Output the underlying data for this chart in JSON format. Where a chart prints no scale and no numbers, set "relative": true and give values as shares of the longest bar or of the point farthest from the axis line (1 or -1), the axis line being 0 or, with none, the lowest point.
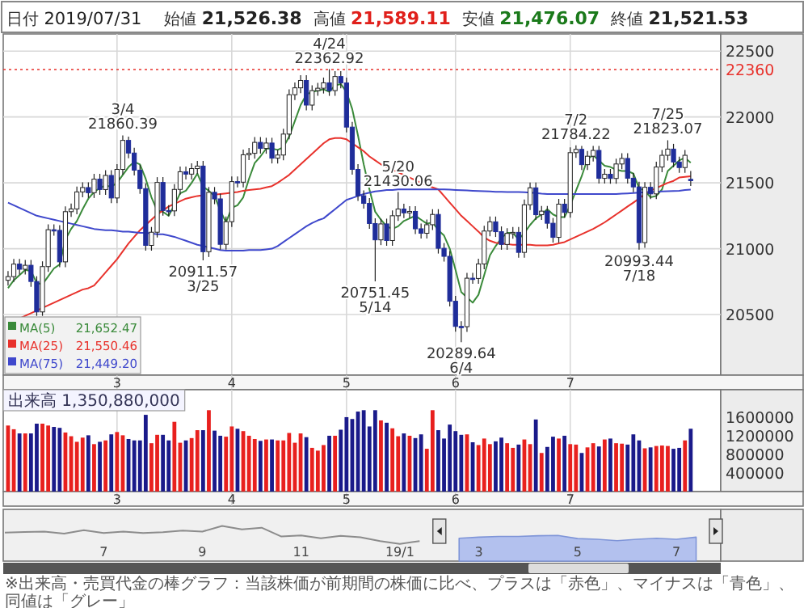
{
  "chart_data": [
    {
      "type": "candlestick",
      "categories": [
        null,
        null,
        null,
        null,
        null,
        null,
        null,
        null,
        null,
        null,
        null,
        null,
        null,
        null,
        null,
        null,
        null,
        null,
        null,
        "3",
        null,
        null,
        null,
        null,
        null,
        null,
        null,
        null,
        null,
        null,
        null,
        null,
        null,
        null,
        null,
        null,
        null,
        null,
        null,
        "4",
        null,
        null,
        null,
        null,
        null,
        null,
        null,
        null,
        null,
        null,
        null,
        null,
        null,
        null,
        null,
        null,
        null,
        null,
        null,
        "5",
        null,
        null,
        null,
        null,
        null,
        null,
        null,
        null,
        null,
        null,
        null,
        null,
        null,
        null,
        null,
        null,
        null,
        null,
        "6",
        null,
        null,
        null,
        null,
        null,
        null,
        null,
        null,
        null,
        null,
        null,
        null,
        null,
        null,
        null,
        null,
        null,
        null,
        null,
        "7",
        null,
        null,
        null,
        null,
        null,
        null,
        null,
        null,
        null,
        null,
        null,
        null,
        null,
        null,
        null,
        null,
        null,
        null,
        null,
        null,
        null
      ],
      "ohlc": [
        [
          20760,
          20830,
          20720,
          20788
        ],
        [
          20788,
          20923,
          20748,
          20883
        ],
        [
          20883,
          20923,
          20804,
          20844
        ],
        [
          20844,
          20914,
          20804,
          20874
        ],
        [
          20874,
          20914,
          20711,
          20751
        ],
        [
          20751,
          20791,
          20490,
          20520
        ],
        [
          20520,
          20904,
          20490,
          20864
        ],
        [
          20864,
          21184,
          20824,
          21144
        ],
        [
          21144,
          21184,
          21099,
          21139
        ],
        [
          21139,
          21179,
          20860,
          20900
        ],
        [
          20900,
          21321,
          20860,
          21281
        ],
        [
          21281,
          21342,
          21241,
          21302
        ],
        [
          21302,
          21471,
          21262,
          21431
        ],
        [
          21431,
          21504,
          21391,
          21464
        ],
        [
          21464,
          21504,
          21385,
          21425
        ],
        [
          21425,
          21568,
          21385,
          21528
        ],
        [
          21528,
          21568,
          21409,
          21449
        ],
        [
          21449,
          21596,
          21409,
          21556
        ],
        [
          21556,
          21596,
          21345,
          21385
        ],
        [
          21385,
          21642,
          21345,
          21602
        ],
        [
          21602,
          21860.39,
          21562,
          21822
        ],
        [
          21822,
          21850,
          21686,
          21726
        ],
        [
          21726,
          21766,
          21556,
          21596
        ],
        [
          21596,
          21636,
          21416,
          21456
        ],
        [
          21456,
          21496,
          20985,
          21025
        ],
        [
          21025,
          21165,
          20985,
          21125
        ],
        [
          21125,
          21543,
          21085,
          21503
        ],
        [
          21503,
          21543,
          21250,
          21290
        ],
        [
          21290,
          21330,
          21247,
          21287
        ],
        [
          21287,
          21490,
          21247,
          21450
        ],
        [
          21450,
          21624,
          21410,
          21584
        ],
        [
          21584,
          21624,
          21526,
          21566
        ],
        [
          21566,
          21648,
          21526,
          21608
        ],
        [
          21608,
          21667,
          21568,
          21627
        ],
        [
          21627,
          21667,
          20911.57,
          20977
        ],
        [
          20977,
          21468,
          20937,
          21428
        ],
        [
          21428,
          21468,
          21338,
          21378
        ],
        [
          21378,
          21418,
          20993,
          21033
        ],
        [
          21033,
          21245,
          20993,
          21205
        ],
        [
          21205,
          21549,
          21165,
          21509
        ],
        [
          21509,
          21549,
          21465,
          21505
        ],
        [
          21505,
          21753,
          21465,
          21713
        ],
        [
          21713,
          21764,
          21673,
          21724
        ],
        [
          21724,
          21847,
          21684,
          21807
        ],
        [
          21807,
          21847,
          21721,
          21761
        ],
        [
          21761,
          21842,
          21721,
          21802
        ],
        [
          21802,
          21842,
          21647,
          21687
        ],
        [
          21687,
          21751,
          21647,
          21711
        ],
        [
          21711,
          21910,
          21671,
          21870
        ],
        [
          21870,
          22209,
          21830,
          22169
        ],
        [
          22169,
          22261,
          22129,
          22221
        ],
        [
          22221,
          22317,
          22181,
          22277
        ],
        [
          22277,
          22317,
          22050,
          22090
        ],
        [
          22090,
          22240,
          22050,
          22200
        ],
        [
          22200,
          22258,
          22160,
          22218
        ],
        [
          22218,
          22299,
          22178,
          22259
        ],
        [
          22259,
          22362.92,
          22160,
          22200
        ],
        [
          22200,
          22347,
          22160,
          22307
        ],
        [
          22307,
          22347,
          22218,
          22258
        ],
        [
          22258,
          22298,
          21883,
          21923
        ],
        [
          21923,
          21963,
          21562,
          21602
        ],
        [
          21602,
          21642,
          21362,
          21402
        ],
        [
          21402,
          21442,
          21304,
          21344
        ],
        [
          21344,
          21384,
          21151,
          21191
        ],
        [
          21191,
          21231,
          20751.45,
          21067
        ],
        [
          21067,
          21228,
          21027,
          21188
        ],
        [
          21188,
          21228,
          21022,
          21062
        ],
        [
          21062,
          21290,
          21022,
          21250
        ],
        [
          21250,
          21430.06,
          21210,
          21301
        ],
        [
          21301,
          21341,
          21232,
          21272
        ],
        [
          21272,
          21323,
          21232,
          21283
        ],
        [
          21283,
          21323,
          21111,
          21151
        ],
        [
          21151,
          21191,
          21077,
          21117
        ],
        [
          21117,
          21222,
          21077,
          21182
        ],
        [
          21182,
          21300,
          21142,
          21260
        ],
        [
          21260,
          21300,
          20963,
          21003
        ],
        [
          21003,
          21043,
          20902,
          20942
        ],
        [
          20942,
          20982,
          20561,
          20601
        ],
        [
          20601,
          20641,
          20370,
          20410
        ],
        [
          20410,
          20450,
          20289.64,
          20408
        ],
        [
          20408,
          20816,
          20368,
          20776
        ],
        [
          20776,
          20816,
          20734,
          20774
        ],
        [
          20774,
          20924,
          20734,
          20884
        ],
        [
          20884,
          21174,
          20844,
          21134
        ],
        [
          21134,
          21244,
          21094,
          21204
        ],
        [
          21204,
          21244,
          21089,
          21129
        ],
        [
          21129,
          21169,
          20992,
          21032
        ],
        [
          21032,
          21156,
          20992,
          21116
        ],
        [
          21116,
          21164,
          21076,
          21124
        ],
        [
          21124,
          21164,
          20932,
          20972
        ],
        [
          20972,
          21373,
          20932,
          21333
        ],
        [
          21333,
          21502,
          21293,
          21462
        ],
        [
          21462,
          21502,
          21218,
          21258
        ],
        [
          21258,
          21325,
          21218,
          21285
        ],
        [
          21285,
          21325,
          21153,
          21193
        ],
        [
          21193,
          21233,
          21046,
          21086
        ],
        [
          21086,
          21378,
          21046,
          21338
        ],
        [
          21338,
          21378,
          21235,
          21275
        ],
        [
          21275,
          21769,
          21235,
          21729
        ],
        [
          21729,
          21784.22,
          21689,
          21754
        ],
        [
          21754,
          21780,
          21598,
          21638
        ],
        [
          21638,
          21742,
          21598,
          21702
        ],
        [
          21702,
          21780,
          21662,
          21746
        ],
        [
          21746,
          21780,
          21494,
          21534
        ],
        [
          21534,
          21605,
          21494,
          21565
        ],
        [
          21565,
          21605,
          21493,
          21533
        ],
        [
          21533,
          21683,
          21493,
          21643
        ],
        [
          21643,
          21725,
          21603,
          21685
        ],
        [
          21685,
          21725,
          21495,
          21535
        ],
        [
          21535,
          21575,
          21429,
          21469
        ],
        [
          21469,
          21509,
          20993.44,
          21046
        ],
        [
          21046,
          21506,
          21006,
          21466
        ],
        [
          21466,
          21506,
          21376,
          21416
        ],
        [
          21416,
          21660,
          21376,
          21620
        ],
        [
          21620,
          21749,
          21580,
          21709
        ],
        [
          21709,
          21823.07,
          21669,
          21756
        ],
        [
          21756,
          21796,
          21618,
          21658
        ],
        [
          21658,
          21698,
          21576,
          21616
        ],
        [
          21616,
          21749,
          21576,
          21709
        ],
        [
          21526.38,
          21589.11,
          21476.07,
          21521.53
        ]
      ],
      "colors": [
        "#ffffff",
        "#ffffff",
        "#1f2d9a",
        "#ffffff",
        "#1f2d9a",
        "#1f2d9a",
        "#ffffff",
        "#ffffff",
        "#1f2d9a",
        "#1f2d9a",
        "#ffffff",
        "#ffffff",
        "#ffffff",
        "#ffffff",
        "#1f2d9a",
        "#ffffff",
        "#1f2d9a",
        "#ffffff",
        "#1f2d9a",
        "#ffffff",
        "#ffffff",
        "#1f2d9a",
        "#1f2d9a",
        "#1f2d9a",
        "#1f2d9a",
        "#ffffff",
        "#ffffff",
        "#1f2d9a",
        "#1f2d9a",
        "#ffffff",
        "#ffffff",
        "#1f2d9a",
        "#ffffff",
        "#ffffff",
        "#1f2d9a",
        "#ffffff",
        "#1f2d9a",
        "#1f2d9a",
        "#ffffff",
        "#ffffff",
        "#1f2d9a",
        "#ffffff",
        "#ffffff",
        "#ffffff",
        "#1f2d9a",
        "#ffffff",
        "#1f2d9a",
        "#ffffff",
        "#ffffff",
        "#ffffff",
        "#ffffff",
        "#ffffff",
        "#1f2d9a",
        "#ffffff",
        "#ffffff",
        "#ffffff",
        "#1f2d9a",
        "#ffffff",
        "#1f2d9a",
        "#1f2d9a",
        "#1f2d9a",
        "#1f2d9a",
        "#1f2d9a",
        "#1f2d9a",
        "#1f2d9a",
        "#ffffff",
        "#1f2d9a",
        "#ffffff",
        "#ffffff",
        "#1f2d9a",
        "#ffffff",
        "#1f2d9a",
        "#1f2d9a",
        "#ffffff",
        "#ffffff",
        "#1f2d9a",
        "#1f2d9a",
        "#1f2d9a",
        "#1f2d9a",
        "#1f2d9a",
        "#ffffff",
        "#1f2d9a",
        "#ffffff",
        "#ffffff",
        "#ffffff",
        "#1f2d9a",
        "#1f2d9a",
        "#ffffff",
        "#ffffff",
        "#1f2d9a",
        "#ffffff",
        "#ffffff",
        "#1f2d9a",
        "#ffffff",
        "#1f2d9a",
        "#1f2d9a",
        "#ffffff",
        "#1f2d9a",
        "#ffffff",
        "#ffffff",
        "#1f2d9a",
        "#ffffff",
        "#ffffff",
        "#1f2d9a",
        "#ffffff",
        "#1f2d9a",
        "#ffffff",
        "#ffffff",
        "#1f2d9a",
        "#1f2d9a",
        "#1f2d9a",
        "#ffffff",
        "#1f2d9a",
        "#ffffff",
        "#ffffff",
        "#ffffff",
        "#1f2d9a",
        "#1f2d9a",
        "#ffffff",
        "#1f2d9a"
      ],
      "series": [
        {
          "name": "MA(5)",
          "type": "line",
          "color": "#3a8a3a",
          "values": [
            20700,
            20760,
            20800,
            20840,
            20830,
            20740,
            20730,
            20790,
            20850,
            20880,
            21070,
            21150,
            21210,
            21300,
            21380,
            21430,
            21460,
            21480,
            21470,
            21500,
            21560,
            21620,
            21660,
            21640,
            21530,
            21390,
            21290,
            21280,
            21250,
            21330,
            21420,
            21440,
            21500,
            21570,
            21470,
            21440,
            21400,
            21290,
            21200,
            21310,
            21330,
            21390,
            21530,
            21650,
            21700,
            21760,
            21760,
            21750,
            21770,
            21850,
            21970,
            22090,
            22170,
            22190,
            22200,
            22210,
            22190,
            22240,
            22250,
            22190,
            22060,
            21860,
            21640,
            21450,
            21280,
            21220,
            21170,
            21150,
            21170,
            21210,
            21230,
            21250,
            21220,
            21190,
            21200,
            21140,
            21100,
            21000,
            20840,
            20670,
            20630,
            20590,
            20650,
            20800,
            20950,
            21020,
            21080,
            21120,
            21120,
            21070,
            21120,
            21180,
            21230,
            21260,
            21300,
            21260,
            21240,
            21240,
            21330,
            21440,
            21550,
            21680,
            21710,
            21670,
            21630,
            21620,
            21600,
            21590,
            21590,
            21570,
            21460,
            21440,
            21390,
            21400,
            21450,
            21590,
            21630,
            21670,
            21690,
            21652.47
          ]
        },
        {
          "name": "MA(25)",
          "type": "line",
          "color": "#e8322c",
          "values": [
            null,
            null,
            20470,
            20490,
            20510,
            20530,
            20550,
            20570,
            20590,
            20610,
            20630,
            20650,
            20670,
            20690,
            20700,
            20720,
            20770,
            20820,
            20870,
            20920,
            20980,
            21040,
            21090,
            21140,
            21180,
            21220,
            21260,
            21290,
            21320,
            21340,
            21360,
            21380,
            21390,
            21400,
            21405,
            null,
            21410,
            21415,
            21420,
            21425,
            21430,
            21440,
            21445,
            21450,
            21455,
            21465,
            21475,
            21500,
            21530,
            21560,
            21600,
            21640,
            21680,
            21720,
            21760,
            21800,
            21830,
            21840,
            21840,
            21830,
            21800,
            21770,
            21740,
            21700,
            21670,
            21640,
            21620,
            21600,
            21580,
            21560,
            21540,
            21520,
            21500,
            21480,
            21465,
            21450,
            21400,
            21350,
            21300,
            21250,
            21210,
            21170,
            21130,
            21085,
            21060,
            21045,
            21040,
            21035,
            21030,
            21030,
            21030,
            21030,
            21025,
            21025,
            21025,
            21030,
            21040,
            21050,
            21070,
            21090,
            21110,
            21130,
            21150,
            21175,
            21200,
            21230,
            21260,
            21290,
            21320,
            21350,
            21380,
            21415,
            21440,
            21460,
            21480,
            21500,
            21515,
            21540,
            21545,
            21550.46
          ]
        },
        {
          "name": "MA(75)",
          "type": "line",
          "color": "#3f48cc",
          "values": [
            21350,
            21330,
            21310,
            21290,
            21270,
            21250,
            21240,
            21230,
            21220,
            21210,
            21200,
            21190,
            21180,
            21170,
            21160,
            21150,
            21145,
            21140,
            21140,
            21135,
            21130,
            21130,
            21125,
            21120,
            21120,
            21115,
            21110,
            21110,
            21100,
            21090,
            21075,
            21060,
            21045,
            21030,
            21020,
            21010,
            21000,
            20990,
            20985,
            20985,
            20985,
            20985,
            20990,
            20990,
            20990,
            20995,
            21000,
            21020,
            21050,
            21080,
            21110,
            21140,
            21170,
            21195,
            21215,
            21230,
            21265,
            21300,
            21335,
            21370,
            21385,
            21400,
            21415,
            21425,
            21435,
            21440,
            21445,
            21445,
            21450,
            21450,
            21450,
            21450,
            21450,
            21450,
            21450,
            21450,
            21450,
            21448,
            21446,
            21444,
            21442,
            21440,
            21438,
            21436,
            21434,
            21432,
            21431,
            21430,
            21430,
            21430,
            21428,
            21425,
            21422,
            21418,
            21415,
            21415,
            21415,
            21415,
            21415,
            21415,
            21415,
            21415,
            21415,
            21415,
            21415,
            21415,
            21415,
            21418,
            21420,
            21422,
            21425,
            21428,
            21430,
            21432,
            21434,
            21436,
            21438,
            21440,
            21445,
            21449.2
          ]
        }
      ],
      "ylim": [
        20040,
        22630
      ],
      "yticks": [
        20500,
        21000,
        21500,
        22000,
        22500
      ],
      "grid": true,
      "legend": "bottom left",
      "ref_lines": [
        {
          "axis": "y",
          "value": 22360,
          "label": "22360",
          "color": "#e8322c",
          "line_style": "dotted"
        }
      ],
      "annotations": [
        "日付 2019/07/31",
        "始値 21,526.38",
        "高値 21,589.11",
        "安値 21,476.07",
        "終値 21,521.53",
        {
          "text": "3/4 21860.39",
          "y": 21860.39
        },
        {
          "text": "20911.57 3/25",
          "y": 20911.57
        },
        {
          "text": "4/24 22362.92",
          "y": 22362.92
        },
        {
          "text": "20751.45 5/14",
          "y": 20751.45
        },
        {
          "text": "5/20 21430.06",
          "y": 21430.06
        },
        {
          "text": "20289.64 6/4",
          "y": 20289.64
        },
        {
          "text": "7/2 21784.22",
          "y": 21784.22
        },
        {
          "text": "20993.44 7/18",
          "y": 20993.44
        },
        {
          "text": "7/25 21823.07",
          "y": 21823.07
        },
        "21,652.47",
        "21,550.46",
        "21,449.20"
      ]
    },
    {
      "type": "bar",
      "categories": [
        null,
        null,
        null,
        null,
        null,
        null,
        null,
        null,
        null,
        null,
        null,
        null,
        null,
        null,
        null,
        null,
        null,
        null,
        null,
        "3",
        null,
        null,
        null,
        null,
        null,
        null,
        null,
        null,
        null,
        null,
        null,
        null,
        null,
        null,
        null,
        null,
        null,
        null,
        null,
        "4",
        null,
        null,
        null,
        null,
        null,
        null,
        null,
        null,
        null,
        null,
        null,
        null,
        null,
        null,
        null,
        null,
        null,
        null,
        null,
        "5",
        null,
        null,
        null,
        null,
        null,
        null,
        null,
        null,
        null,
        null,
        null,
        null,
        null,
        null,
        null,
        null,
        null,
        null,
        "6",
        null,
        null,
        null,
        null,
        null,
        null,
        null,
        null,
        null,
        null,
        null,
        null,
        null,
        null,
        null,
        null,
        null,
        null,
        null,
        "7",
        null,
        null,
        null,
        null,
        null,
        null,
        null,
        null,
        null,
        null,
        null,
        null,
        null,
        null,
        null,
        null,
        null,
        null,
        null,
        null,
        null
      ],
      "values": [
        1420000,
        1340000,
        1250000,
        1250000,
        1250000,
        1460000,
        1460000,
        1420000,
        1390000,
        1370000,
        1270000,
        1190000,
        1070000,
        1160000,
        1210000,
        1020000,
        1070000,
        1100000,
        1230000,
        1280000,
        1210000,
        1130000,
        1100000,
        1100000,
        1650000,
        1040000,
        1220000,
        1220000,
        1100000,
        1500000,
        1050000,
        1100000,
        1150000,
        1320000,
        1320000,
        1750000,
        1310000,
        1200000,
        1180000,
        1400000,
        1350000,
        1300000,
        1200000,
        1130000,
        1090000,
        1120000,
        1120000,
        1100000,
        1100000,
        1260000,
        1050000,
        1250000,
        1170000,
        940000,
        880000,
        1000000,
        1200000,
        1200000,
        1330000,
        1600000,
        1560000,
        1720000,
        1750000,
        1400000,
        1750000,
        1530000,
        1480000,
        1360000,
        1190000,
        1250000,
        1200000,
        1150000,
        1230000,
        920000,
        1750000,
        1320000,
        1140000,
        1440000,
        1300000,
        1220000,
        1230000,
        1060000,
        1000000,
        1140000,
        1020000,
        1080000,
        1160000,
        1040000,
        940000,
        1010000,
        1120000,
        1020000,
        1550000,
        830000,
        960000,
        1180000,
        1140000,
        1200000,
        1020000,
        1010000,
        830000,
        950000,
        1040000,
        970000,
        1120000,
        1140000,
        1040000,
        1030000,
        1010000,
        1230000,
        1100000,
        930000,
        950000,
        980000,
        990000,
        980000,
        920000,
        940000,
        1100000,
        1350880
      ],
      "colors": [
        "#e8201e",
        "#e8201e",
        "#1a1a8a",
        "#e8201e",
        "#1a1a8a",
        "#1a1a8a",
        "#e8201e",
        "#e8201e",
        "#1a1a8a",
        "#1a1a8a",
        "#e8201e",
        "#e8201e",
        "#e8201e",
        "#e8201e",
        "#1a1a8a",
        "#e8201e",
        "#1a1a8a",
        "#e8201e",
        "#1a1a8a",
        "#e8201e",
        "#e8201e",
        "#1a1a8a",
        "#1a1a8a",
        "#1a1a8a",
        "#1a1a8a",
        "#e8201e",
        "#e8201e",
        "#1a1a8a",
        "#1a1a8a",
        "#e8201e",
        "#e8201e",
        "#1a1a8a",
        "#e8201e",
        "#e8201e",
        "#1a1a8a",
        "#e8201e",
        "#1a1a8a",
        "#1a1a8a",
        "#e8201e",
        "#e8201e",
        "#1a1a8a",
        "#e8201e",
        "#e8201e",
        "#e8201e",
        "#1a1a8a",
        "#e8201e",
        "#1a1a8a",
        "#e8201e",
        "#e8201e",
        "#e8201e",
        "#e8201e",
        "#e8201e",
        "#1a1a8a",
        "#e8201e",
        "#e8201e",
        "#e8201e",
        "#1a1a8a",
        "#e8201e",
        "#1a1a8a",
        "#1a1a8a",
        "#1a1a8a",
        "#1a1a8a",
        "#1a1a8a",
        "#1a1a8a",
        "#1a1a8a",
        "#e8201e",
        "#1a1a8a",
        "#e8201e",
        "#e8201e",
        "#1a1a8a",
        "#e8201e",
        "#1a1a8a",
        "#1a1a8a",
        "#e8201e",
        "#e8201e",
        "#1a1a8a",
        "#1a1a8a",
        "#1a1a8a",
        "#1a1a8a",
        "#1a1a8a",
        "#e8201e",
        "#1a1a8a",
        "#e8201e",
        "#e8201e",
        "#e8201e",
        "#1a1a8a",
        "#1a1a8a",
        "#e8201e",
        "#e8201e",
        "#1a1a8a",
        "#e8201e",
        "#e8201e",
        "#1a1a8a",
        "#e8201e",
        "#1a1a8a",
        "#1a1a8a",
        "#e8201e",
        "#1a1a8a",
        "#e8201e",
        "#e8201e",
        "#1a1a8a",
        "#e8201e",
        "#e8201e",
        "#1a1a8a",
        "#e8201e",
        "#1a1a8a",
        "#e8201e",
        "#e8201e",
        "#1a1a8a",
        "#1a1a8a",
        "#1a1a8a",
        "#e8201e",
        "#1a1a8a",
        "#e8201e",
        "#e8201e",
        "#e8201e",
        "#1a1a8a",
        "#1a1a8a",
        "#e8201e",
        "#1a1a8a"
      ],
      "ylim": [
        0,
        2190000
      ],
      "yticks": [
        400000,
        800000,
        1200000,
        1600000
      ],
      "grid": "x",
      "annotations": [
        "出来高 1,350,880,000",
        "※出来高・売買代金の棒グラフ：当該株価が前期間の株価に比べ、プラスは「赤色」、マイナスは「青色」、同値は「グレー」"
      ]
    },
    {
      "type": "area",
      "relative": true,
      "categories": [
        null,
        null,
        null,
        null,
        null,
        "7",
        null,
        null,
        null,
        null,
        "9",
        null,
        null,
        null,
        null,
        "11",
        null,
        null,
        null,
        null,
        "19/1",
        null,
        null,
        null,
        "3",
        null,
        null,
        null,
        null,
        "5",
        null,
        null,
        null,
        null,
        "7",
        null,
        null
      ],
      "series": [
        {
          "type": "line",
          "color": "#8c8c8c",
          "values": [
            0.81,
            0.83,
            0.84,
            0.78,
            0.88,
            0.8,
            0.84,
            0.8,
            0.82,
            0.87,
            0.84,
            1.0,
            0.9,
            0.95,
            0.7,
            0.73,
            0.65,
            0.72,
            0.68,
            0.57,
            0.49,
            0.57,
            null,
            null,
            null,
            null,
            null,
            null,
            null,
            null,
            null,
            null,
            null,
            null,
            null,
            null,
            null
          ]
        },
        {
          "type": "area",
          "color": "#b3c1ee",
          "values": [
            null,
            null,
            null,
            null,
            null,
            null,
            null,
            null,
            null,
            null,
            null,
            null,
            null,
            null,
            null,
            null,
            null,
            null,
            null,
            null,
            null,
            null,
            null,
            0.65,
            0.68,
            0.7,
            0.7,
            0.72,
            0.73,
            0.64,
            0.62,
            0.58,
            0.62,
            0.65,
            0.62,
            0.68,
            null
          ]
        }
      ]
    }
  ]
}
